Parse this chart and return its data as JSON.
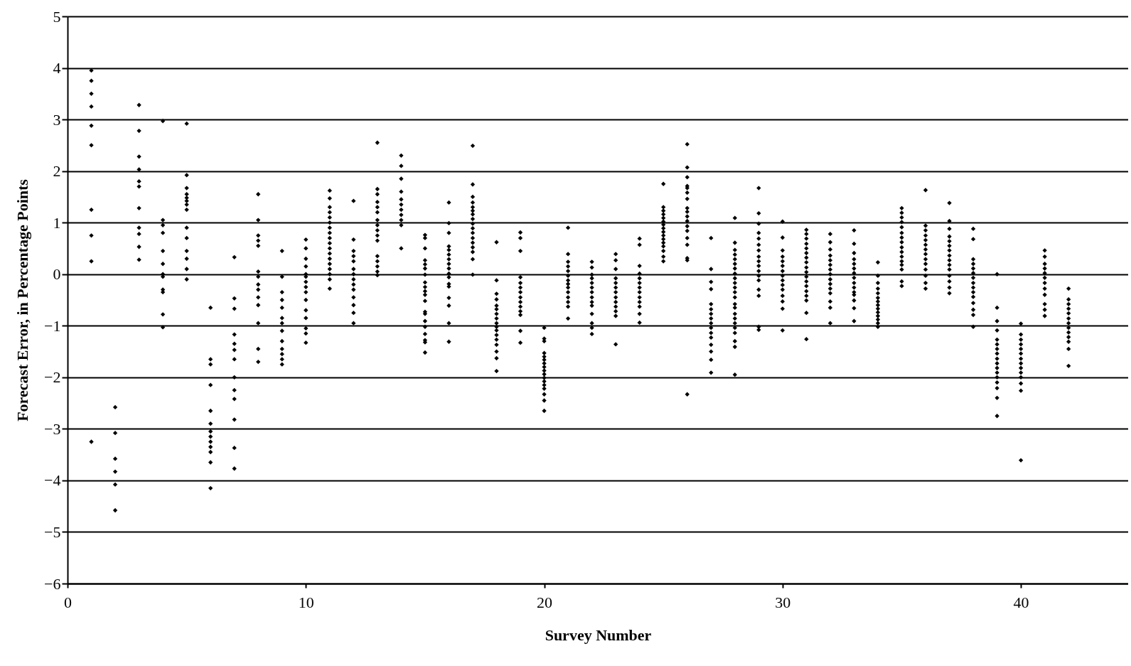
{
  "chart_data": {
    "type": "scatter",
    "xlabel": "Survey Number",
    "ylabel": "Forecast Error, in Percentage Points",
    "xlim": [
      0,
      44.5
    ],
    "xticks": [
      0,
      10,
      20,
      30,
      40
    ],
    "ylim": [
      -6,
      5
    ],
    "yticks": [
      -6,
      -5,
      -4,
      -3,
      -2,
      -1,
      0,
      1,
      2,
      3,
      4,
      5
    ],
    "grid": "y",
    "legend": false,
    "marker": "diamond",
    "series": [
      {
        "color": "#000000",
        "x": [
          1,
          1,
          1,
          1,
          1,
          1,
          1,
          1,
          1,
          1
        ],
        "values": [
          3.95,
          3.75,
          3.5,
          3.25,
          2.88,
          2.5,
          1.25,
          0.75,
          0.25,
          -3.25
        ]
      },
      {
        "color": "#000000",
        "x": [
          2,
          2,
          2,
          2,
          2,
          2
        ],
        "values": [
          -2.58,
          -3.08,
          -3.58,
          -3.83,
          -4.08,
          -4.58
        ]
      },
      {
        "color": "#000000",
        "x": [
          3,
          3,
          3,
          3,
          3,
          3,
          3,
          3,
          3,
          3,
          3
        ],
        "values": [
          3.28,
          2.78,
          2.28,
          2.03,
          1.8,
          1.7,
          1.28,
          0.9,
          0.78,
          0.53,
          0.28
        ]
      },
      {
        "color": "#000000",
        "x": [
          4,
          4,
          4,
          4,
          4,
          4,
          4,
          4,
          4,
          4,
          4,
          4
        ],
        "values": [
          2.97,
          1.05,
          0.95,
          0.8,
          0.45,
          0.2,
          0,
          -0.05,
          -0.3,
          -0.35,
          -0.78,
          -1.03
        ]
      },
      {
        "color": "#000000",
        "x": [
          5,
          5,
          5,
          5,
          5,
          5,
          5,
          5,
          5,
          5,
          5,
          5,
          5,
          5
        ],
        "values": [
          2.92,
          1.92,
          1.67,
          1.55,
          1.48,
          1.42,
          1.35,
          1.25,
          0.9,
          0.7,
          0.45,
          0.3,
          0.1,
          -0.1
        ]
      },
      {
        "color": "#000000",
        "x": [
          6,
          6,
          6,
          6,
          6,
          6,
          6,
          6,
          6,
          6,
          6,
          6,
          6
        ],
        "values": [
          -0.65,
          -1.65,
          -1.75,
          -2.15,
          -2.65,
          -2.9,
          -3.05,
          -3.15,
          -3.25,
          -3.35,
          -3.45,
          -3.65,
          -4.15
        ]
      },
      {
        "color": "#000000",
        "x": [
          7,
          7,
          7,
          7,
          7,
          7,
          7,
          7,
          7,
          7,
          7,
          7,
          7
        ],
        "values": [
          0.33,
          -0.47,
          -0.67,
          -1.17,
          -1.35,
          -1.47,
          -1.65,
          -2.0,
          -2.25,
          -2.42,
          -2.82,
          -3.37,
          -3.77
        ]
      },
      {
        "color": "#000000",
        "x": [
          8,
          8,
          8,
          8,
          8,
          8,
          8,
          8,
          8,
          8,
          8,
          8,
          8,
          8
        ],
        "values": [
          1.55,
          1.05,
          0.75,
          0.65,
          0.55,
          0.05,
          -0.05,
          -0.2,
          -0.3,
          -0.45,
          -0.6,
          -0.95,
          -1.45,
          -1.7
        ]
      },
      {
        "color": "#000000",
        "x": [
          9,
          9,
          9,
          9,
          9,
          9,
          9,
          9,
          9,
          9,
          9,
          9,
          9
        ],
        "values": [
          0.45,
          -0.05,
          -0.35,
          -0.5,
          -0.65,
          -0.85,
          -0.95,
          -1.1,
          -1.3,
          -1.45,
          -1.55,
          -1.65,
          -1.75
        ]
      },
      {
        "color": "#000000",
        "x": [
          10,
          10,
          10,
          10,
          10,
          10,
          10,
          10,
          10,
          10,
          10,
          10,
          10,
          10,
          10
        ],
        "values": [
          0.67,
          0.5,
          0.3,
          0.15,
          0,
          -0.05,
          -0.15,
          -0.25,
          -0.35,
          -0.5,
          -0.7,
          -0.85,
          -1.05,
          -1.15,
          -1.33
        ]
      },
      {
        "color": "#000000",
        "x": [
          11,
          11,
          11,
          11,
          11,
          11,
          11,
          11,
          11,
          11,
          11,
          11,
          11,
          11,
          11,
          11,
          11,
          11
        ],
        "values": [
          1.62,
          1.47,
          1.3,
          1.2,
          1.1,
          1.0,
          0.9,
          0.8,
          0.7,
          0.6,
          0.5,
          0.4,
          0.3,
          0.2,
          0.1,
          0,
          -0.1,
          -0.28
        ]
      },
      {
        "color": "#000000",
        "x": [
          12,
          12,
          12,
          12,
          12,
          12,
          12,
          12,
          12,
          12,
          12,
          12,
          12,
          12
        ],
        "values": [
          1.42,
          0.67,
          0.45,
          0.35,
          0.25,
          0.1,
          0,
          -0.1,
          -0.2,
          -0.3,
          -0.45,
          -0.6,
          -0.75,
          -0.95
        ]
      },
      {
        "color": "#000000",
        "x": [
          13,
          13,
          13,
          13,
          13,
          13,
          13,
          13,
          13,
          13,
          13,
          13,
          13,
          13,
          13,
          13
        ],
        "values": [
          2.55,
          1.65,
          1.55,
          1.4,
          1.3,
          1.2,
          1.05,
          0.95,
          0.85,
          0.75,
          0.65,
          0.35,
          0.25,
          0.15,
          0.05,
          -0.02
        ]
      },
      {
        "color": "#000000",
        "x": [
          14,
          14,
          14,
          14,
          14,
          14,
          14,
          14,
          14,
          14,
          14
        ],
        "values": [
          2.3,
          2.1,
          1.85,
          1.6,
          1.45,
          1.35,
          1.25,
          1.15,
          1.05,
          0.95,
          0.5
        ]
      },
      {
        "color": "#000000",
        "x": [
          15,
          15,
          15,
          15,
          15,
          15,
          15,
          15,
          15,
          15,
          15,
          15,
          15,
          15,
          15,
          15,
          15,
          15,
          15,
          15
        ],
        "values": [
          0.76,
          0.7,
          0.5,
          0.27,
          0.19,
          0.11,
          -0.01,
          -0.16,
          -0.25,
          -0.33,
          -0.4,
          -0.52,
          -0.73,
          -0.77,
          -0.91,
          -1.02,
          -1.16,
          -1.28,
          -1.32,
          -1.52
        ]
      },
      {
        "color": "#000000",
        "x": [
          16,
          16,
          16,
          16,
          16,
          16,
          16,
          16,
          16,
          16,
          16,
          16,
          16,
          16,
          16,
          16,
          16
        ],
        "values": [
          1.39,
          0.99,
          0.8,
          0.54,
          0.47,
          0.38,
          0.29,
          0.2,
          0.11,
          0.01,
          -0.06,
          -0.19,
          -0.24,
          -0.46,
          -0.61,
          -0.95,
          -1.31
        ]
      },
      {
        "color": "#000000",
        "x": [
          17,
          17,
          17,
          17,
          17,
          17,
          17,
          17,
          17,
          17,
          17,
          17,
          17,
          17,
          17,
          17,
          17
        ],
        "values": [
          2.49,
          1.74,
          1.5,
          1.39,
          1.3,
          1.23,
          1.16,
          1.07,
          0.98,
          0.89,
          0.8,
          0.7,
          0.61,
          0.52,
          0.43,
          0.29,
          -0.01
        ]
      },
      {
        "color": "#000000",
        "x": [
          18,
          18,
          18,
          18,
          18,
          18,
          18,
          18,
          18,
          18,
          18,
          18,
          18,
          18,
          18,
          18,
          18
        ],
        "values": [
          0.62,
          -0.12,
          -0.38,
          -0.49,
          -0.61,
          -0.68,
          -0.77,
          -0.86,
          -0.95,
          -1.02,
          -1.09,
          -1.18,
          -1.27,
          -1.37,
          -1.5,
          -1.63,
          -1.88
        ]
      },
      {
        "color": "#000000",
        "x": [
          19,
          19,
          19,
          19,
          19,
          19,
          19,
          19,
          19,
          19,
          19,
          19,
          19,
          19
        ],
        "values": [
          0.81,
          0.7,
          0.45,
          -0.06,
          -0.17,
          -0.26,
          -0.35,
          -0.45,
          -0.54,
          -0.63,
          -0.72,
          -0.79,
          -1.1,
          -1.33
        ]
      },
      {
        "color": "#000000",
        "x": [
          20,
          20,
          20,
          20,
          20,
          20,
          20,
          20,
          20,
          20,
          20,
          20,
          20,
          20,
          20,
          20,
          20
        ],
        "values": [
          -1.04,
          -1.25,
          -1.3,
          -1.53,
          -1.6,
          -1.66,
          -1.73,
          -1.8,
          -1.87,
          -1.94,
          -2.01,
          -2.08,
          -2.15,
          -2.22,
          -2.33,
          -2.45,
          -2.65
        ]
      },
      {
        "color": "#000000",
        "x": [
          21,
          21,
          21,
          21,
          21,
          21,
          21,
          21,
          21,
          21,
          21,
          21,
          21,
          21
        ],
        "values": [
          0.9,
          0.39,
          0.24,
          0.15,
          0.06,
          -0.03,
          -0.12,
          -0.19,
          -0.26,
          -0.35,
          -0.45,
          -0.54,
          -0.63,
          -0.86
        ]
      },
      {
        "color": "#000000",
        "x": [
          22,
          22,
          22,
          22,
          22,
          22,
          22,
          22,
          22,
          22,
          22,
          22,
          22,
          22
        ],
        "values": [
          0.24,
          0.13,
          -0.01,
          -0.08,
          -0.17,
          -0.26,
          -0.35,
          -0.45,
          -0.54,
          -0.61,
          -0.77,
          -0.95,
          -1.04,
          -1.16
        ]
      },
      {
        "color": "#000000",
        "x": [
          23,
          23,
          23,
          23,
          23,
          23,
          23,
          23,
          23,
          23,
          23,
          23,
          23
        ],
        "values": [
          0.39,
          0.27,
          0.1,
          -0.08,
          -0.17,
          -0.26,
          -0.35,
          -0.45,
          -0.54,
          -0.63,
          -0.72,
          -0.81,
          -1.36
        ]
      },
      {
        "color": "#000000",
        "x": [
          24,
          24,
          24,
          24,
          24,
          24,
          24,
          24,
          24,
          24,
          24,
          24,
          24
        ],
        "values": [
          0.69,
          0.57,
          0.16,
          0.01,
          -0.08,
          -0.17,
          -0.26,
          -0.35,
          -0.45,
          -0.54,
          -0.63,
          -0.77,
          -0.94
        ]
      },
      {
        "color": "#000000",
        "x": [
          25,
          25,
          25,
          25,
          25,
          25,
          25,
          25,
          25,
          25,
          25,
          25,
          25,
          25,
          25,
          25
        ],
        "values": [
          1.75,
          1.3,
          1.23,
          1.16,
          1.09,
          1.02,
          0.96,
          0.89,
          0.82,
          0.75,
          0.68,
          0.61,
          0.54,
          0.45,
          0.34,
          0.25
        ]
      },
      {
        "color": "#000000",
        "x": [
          26,
          26,
          26,
          26,
          26,
          26,
          26,
          26,
          26,
          26,
          26,
          26,
          26,
          26,
          26,
          26,
          26,
          26
        ],
        "values": [
          2.52,
          2.07,
          1.88,
          1.71,
          1.67,
          1.58,
          1.46,
          1.28,
          1.21,
          1.12,
          1.03,
          0.93,
          0.84,
          0.7,
          0.57,
          0.31,
          0.27,
          -2.33
        ]
      },
      {
        "color": "#000000",
        "x": [
          27,
          27,
          27,
          27,
          27,
          27,
          27,
          27,
          27,
          27,
          27,
          27,
          27,
          27,
          27,
          27
        ],
        "values": [
          0.7,
          0.1,
          -0.15,
          -0.29,
          -0.58,
          -0.68,
          -0.77,
          -0.86,
          -0.95,
          -1.04,
          -1.14,
          -1.23,
          -1.37,
          -1.5,
          -1.66,
          -1.91
        ]
      },
      {
        "color": "#000000",
        "x": [
          28,
          28,
          28,
          28,
          28,
          28,
          28,
          28,
          28,
          28,
          28,
          28,
          28,
          28,
          28,
          28,
          28,
          28,
          28,
          28,
          28,
          28,
          28
        ],
        "values": [
          1.09,
          0.61,
          0.47,
          0.38,
          0.29,
          0.2,
          0.11,
          0.01,
          -0.08,
          -0.17,
          -0.26,
          -0.35,
          -0.45,
          -0.58,
          -0.65,
          -0.77,
          -0.86,
          -0.95,
          -1.04,
          -1.14,
          -1.3,
          -1.41,
          -1.95
        ]
      },
      {
        "color": "#000000",
        "x": [
          29,
          29,
          29,
          29,
          29,
          29,
          29,
          29,
          29,
          29,
          29,
          29,
          29,
          29,
          29,
          29,
          29
        ],
        "values": [
          1.67,
          1.18,
          0.98,
          0.8,
          0.69,
          0.57,
          0.46,
          0.34,
          0.25,
          0.16,
          0.06,
          -0.03,
          -0.12,
          -0.3,
          -0.42,
          -1.02,
          -1.08
        ]
      },
      {
        "color": "#000000",
        "x": [
          30,
          30,
          30,
          30,
          30,
          30,
          30,
          30,
          30,
          30,
          30,
          30,
          30,
          30,
          30
        ],
        "values": [
          1.02,
          0.71,
          0.46,
          0.34,
          0.25,
          0.16,
          0.06,
          -0.03,
          -0.12,
          -0.21,
          -0.3,
          -0.42,
          -0.53,
          -0.67,
          -1.09
        ]
      },
      {
        "color": "#000000",
        "x": [
          31,
          31,
          31,
          31,
          31,
          31,
          31,
          31,
          31,
          31,
          31,
          31,
          31,
          31,
          31,
          31,
          31,
          31
        ],
        "values": [
          0.86,
          0.78,
          0.69,
          0.59,
          0.5,
          0.41,
          0.32,
          0.23,
          0.13,
          0.04,
          -0.05,
          -0.14,
          -0.23,
          -0.33,
          -0.42,
          -0.51,
          -0.75,
          -1.26
        ]
      },
      {
        "color": "#000000",
        "x": [
          32,
          32,
          32,
          32,
          32,
          32,
          32,
          32,
          32,
          32,
          32,
          32,
          32,
          32,
          32
        ],
        "values": [
          0.78,
          0.62,
          0.48,
          0.36,
          0.27,
          0.18,
          0.09,
          0.0,
          -0.1,
          -0.19,
          -0.28,
          -0.37,
          -0.53,
          -0.65,
          -0.95
        ]
      },
      {
        "color": "#000000",
        "x": [
          33,
          33,
          33,
          33,
          33,
          33,
          33,
          33,
          33,
          33,
          33,
          33,
          33,
          33,
          33
        ],
        "values": [
          0.85,
          0.59,
          0.41,
          0.29,
          0.2,
          0.11,
          0.02,
          -0.07,
          -0.17,
          -0.26,
          -0.35,
          -0.4,
          -0.51,
          -0.66,
          -0.91
        ]
      },
      {
        "color": "#000000",
        "x": [
          34,
          34,
          34,
          34,
          34,
          34,
          34,
          34,
          34,
          34,
          34,
          34,
          34,
          34
        ],
        "values": [
          0.23,
          -0.03,
          -0.17,
          -0.28,
          -0.37,
          -0.46,
          -0.53,
          -0.6,
          -0.67,
          -0.74,
          -0.81,
          -0.88,
          -0.95,
          -1.02
        ]
      },
      {
        "color": "#000000",
        "x": [
          35,
          35,
          35,
          35,
          35,
          35,
          35,
          35,
          35,
          35,
          35,
          35,
          35,
          35,
          35,
          35
        ],
        "values": [
          1.28,
          1.19,
          1.1,
          1.01,
          0.91,
          0.8,
          0.71,
          0.62,
          0.52,
          0.43,
          0.34,
          0.25,
          0.18,
          0.09,
          -0.14,
          -0.23
        ]
      },
      {
        "color": "#000000",
        "x": [
          36,
          36,
          36,
          36,
          36,
          36,
          36,
          36,
          36,
          36,
          36,
          36,
          36,
          36
        ],
        "values": [
          1.63,
          0.94,
          0.85,
          0.75,
          0.66,
          0.57,
          0.48,
          0.39,
          0.29,
          0.2,
          0.09,
          -0.03,
          -0.17,
          -0.28
        ]
      },
      {
        "color": "#000000",
        "x": [
          37,
          37,
          37,
          37,
          37,
          37,
          37,
          37,
          37,
          37,
          37,
          37,
          37,
          37,
          37
        ],
        "values": [
          1.38,
          1.03,
          0.88,
          0.73,
          0.64,
          0.55,
          0.46,
          0.36,
          0.27,
          0.18,
          0.09,
          -0.03,
          -0.14,
          -0.26,
          -0.37
        ]
      },
      {
        "color": "#000000",
        "x": [
          38,
          38,
          38,
          38,
          38,
          38,
          38,
          38,
          38,
          38,
          38,
          38,
          38,
          38,
          38
        ],
        "values": [
          0.88,
          0.68,
          0.29,
          0.2,
          0.11,
          0.02,
          -0.07,
          -0.17,
          -0.26,
          -0.35,
          -0.44,
          -0.56,
          -0.69,
          -0.79,
          -1.02
        ]
      },
      {
        "color": "#000000",
        "x": [
          39,
          39,
          39,
          39,
          39,
          39,
          39,
          39,
          39,
          39,
          39,
          39,
          39,
          39,
          39,
          39,
          39
        ],
        "values": [
          0.0,
          -0.65,
          -0.91,
          -1.09,
          -1.27,
          -1.36,
          -1.45,
          -1.54,
          -1.64,
          -1.73,
          -1.82,
          -1.91,
          -2.0,
          -2.1,
          -2.21,
          -2.4,
          -2.75
        ]
      },
      {
        "color": "#000000",
        "x": [
          40,
          40,
          40,
          40,
          40,
          40,
          40,
          40,
          40,
          40,
          40,
          40,
          40,
          40
        ],
        "values": [
          -0.96,
          -1.17,
          -1.27,
          -1.36,
          -1.45,
          -1.54,
          -1.64,
          -1.73,
          -1.82,
          -1.91,
          -2.0,
          -2.12,
          -2.26,
          -3.61
        ]
      },
      {
        "color": "#000000",
        "x": [
          41,
          41,
          41,
          41,
          41,
          41,
          41,
          41,
          41,
          41,
          41,
          41
        ],
        "values": [
          0.46,
          0.34,
          0.2,
          0.11,
          0.02,
          -0.07,
          -0.17,
          -0.28,
          -0.4,
          -0.58,
          -0.69,
          -0.81
        ]
      },
      {
        "color": "#000000",
        "x": [
          42,
          42,
          42,
          42,
          42,
          42,
          42,
          42,
          42,
          42,
          42,
          42,
          42
        ],
        "values": [
          -0.28,
          -0.49,
          -0.58,
          -0.67,
          -0.76,
          -0.86,
          -0.95,
          -1.04,
          -1.13,
          -1.22,
          -1.31,
          -1.45,
          -1.78
        ]
      }
    ]
  }
}
